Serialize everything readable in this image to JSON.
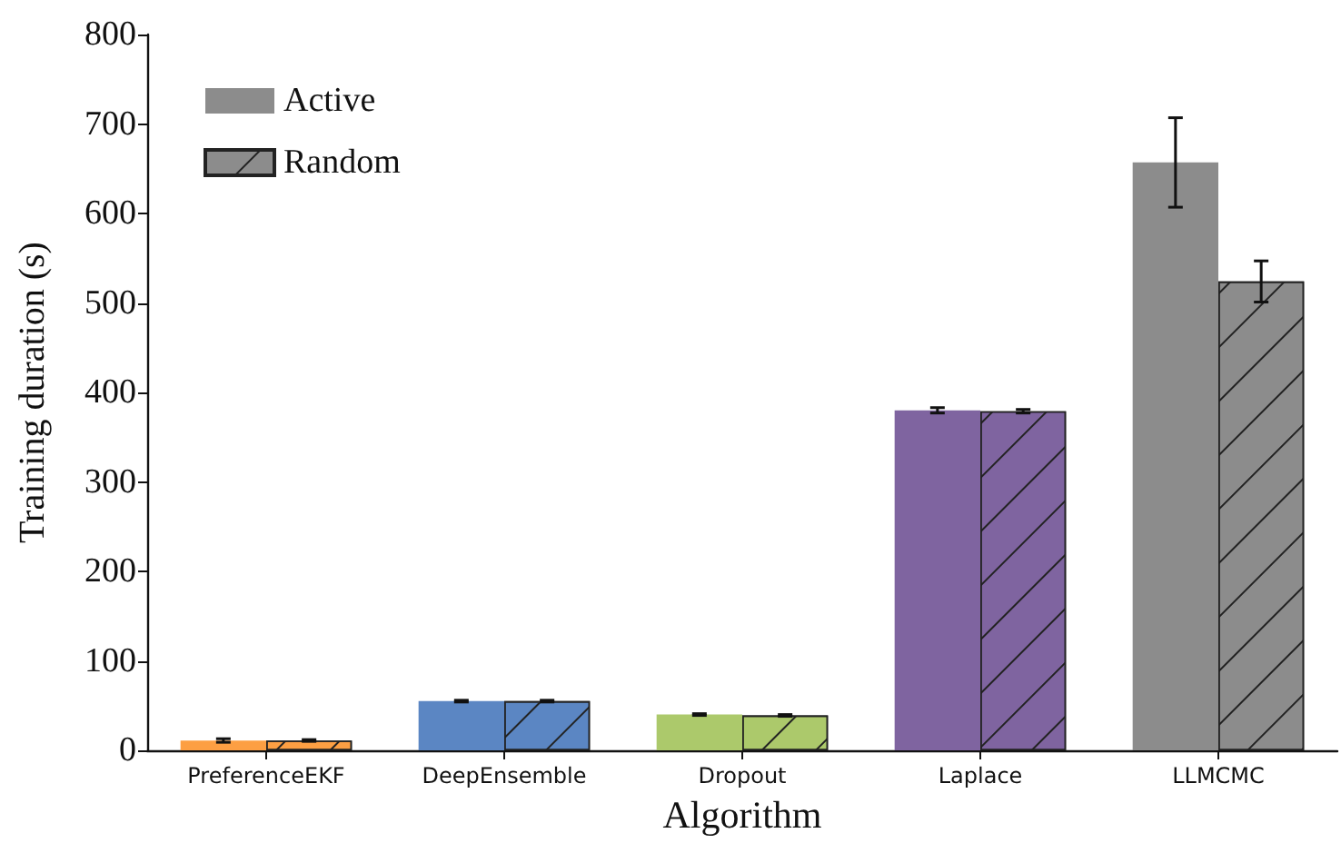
{
  "chart_data": {
    "type": "bar",
    "xlabel": "Algorithm",
    "ylabel": "Training duration (s)",
    "categories": [
      "PreferenceEKF",
      "DeepEnsemble",
      "Dropout",
      "Laplace",
      "LLMCMC"
    ],
    "series": [
      {
        "name": "Active",
        "color": "#8c8c8c",
        "colors": [
          "#fd9f43",
          "#5b86c3",
          "#acc96b",
          "#7f64a0",
          "#8c8c8c"
        ],
        "values": [
          11,
          55,
          40,
          380,
          657
        ],
        "errors": [
          2,
          1,
          1,
          3,
          50
        ]
      },
      {
        "name": "Random",
        "color": "#8c8c8c",
        "colors": [
          "#fd9f43",
          "#5b86c3",
          "#acc96b",
          "#7f64a0",
          "#8c8c8c"
        ],
        "values": [
          11,
          55,
          39,
          379,
          524
        ],
        "errors": [
          1,
          1,
          1,
          2,
          23
        ]
      }
    ],
    "ylim": [
      0,
      800
    ],
    "yticks": [
      0,
      100,
      200,
      300,
      400,
      500,
      600,
      700,
      800
    ],
    "grid": false,
    "legend": "top left"
  }
}
